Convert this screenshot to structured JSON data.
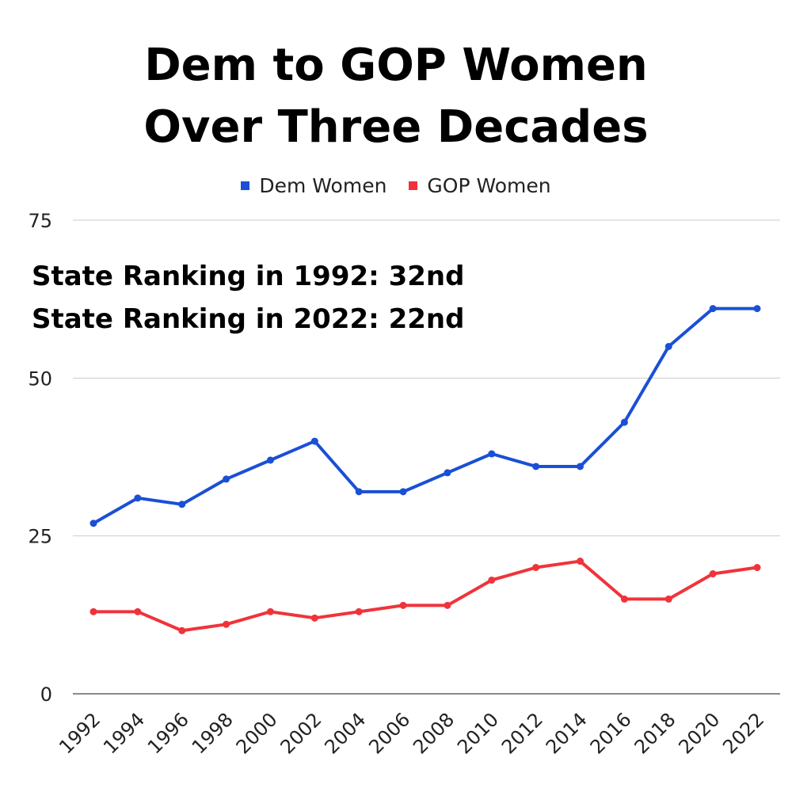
{
  "chart_data": {
    "type": "line",
    "title": [
      "Dem to GOP Women",
      "Over Three Decades"
    ],
    "annotations": [
      "State Ranking in 1992: 32nd",
      "State Ranking in 2022: 22nd"
    ],
    "x": [
      "1992",
      "1994",
      "1996",
      "1998",
      "2000",
      "2002",
      "2004",
      "2006",
      "2008",
      "2010",
      "2012",
      "2014",
      "2016",
      "2018",
      "2020",
      "2022"
    ],
    "series": [
      {
        "name": "Dem Women",
        "color": "#1a4fd6",
        "values": [
          27,
          31,
          30,
          34,
          37,
          40,
          32,
          32,
          35,
          38,
          36,
          36,
          43,
          55,
          61,
          61
        ]
      },
      {
        "name": "GOP Women",
        "color": "#f0333a",
        "values": [
          13,
          13,
          10,
          11,
          13,
          12,
          13,
          14,
          14,
          18,
          20,
          21,
          15,
          15,
          19,
          20
        ]
      }
    ],
    "ylim": [
      0,
      75
    ],
    "yticks": [
      "0",
      "25",
      "50",
      "75"
    ],
    "grid": true,
    "legend_position": "top"
  }
}
